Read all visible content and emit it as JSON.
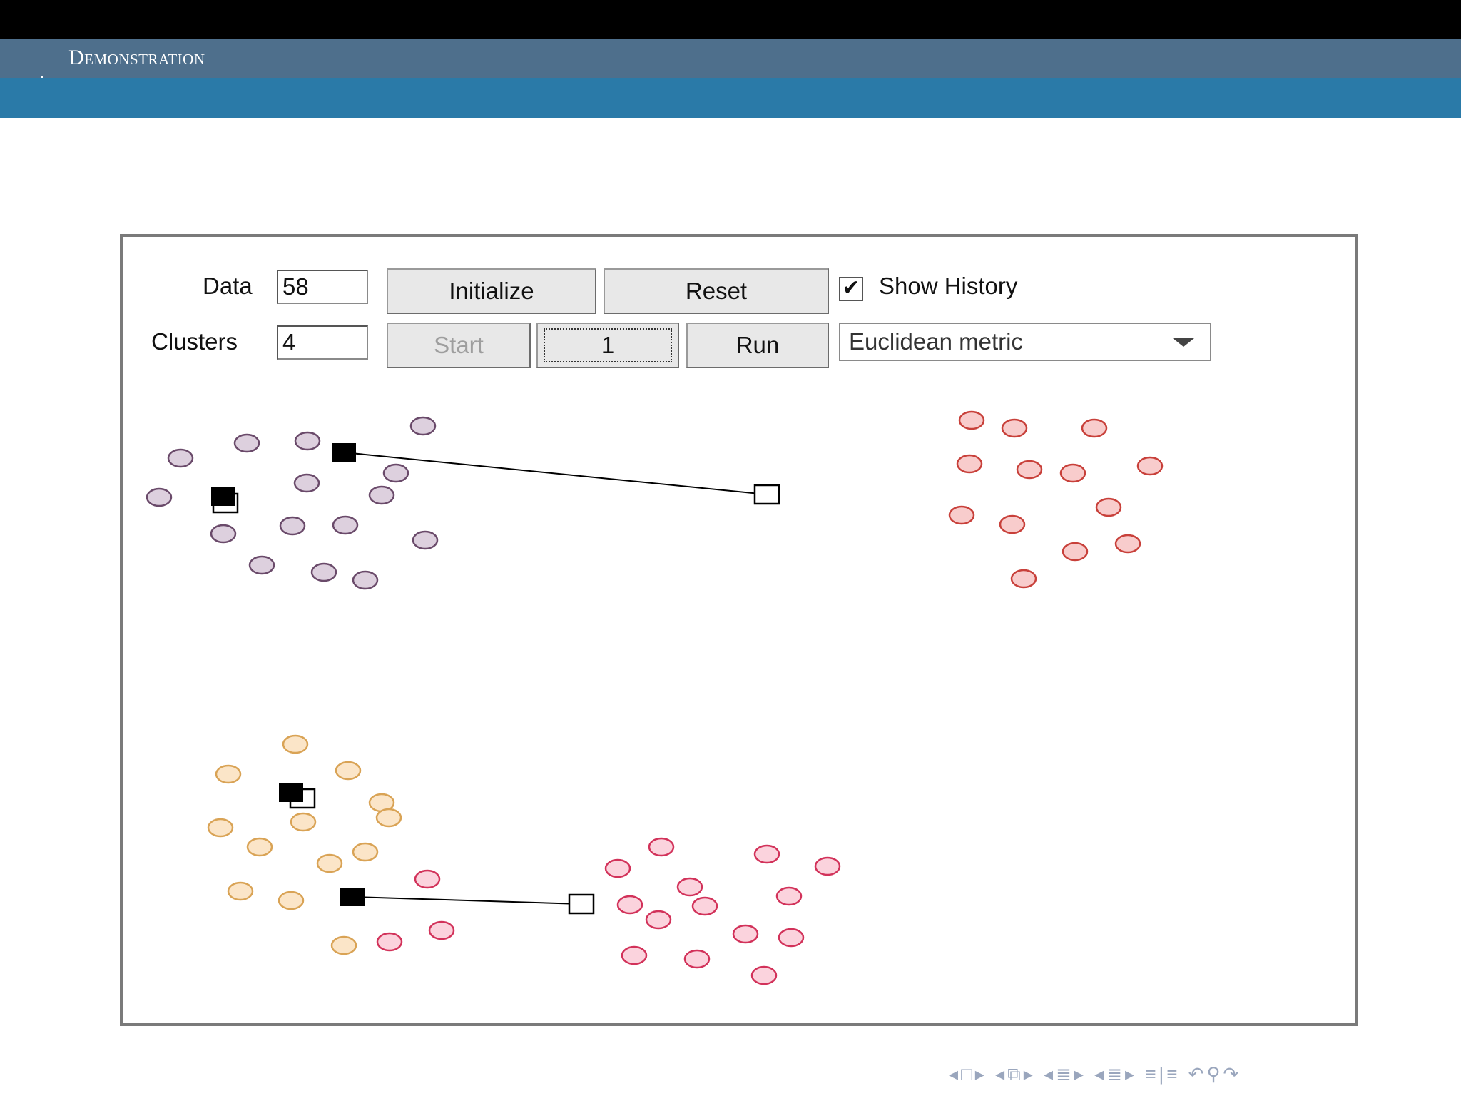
{
  "slide": {
    "section_title": "Demonstration"
  },
  "controls": {
    "data_label": "Data",
    "data_value": "58",
    "clusters_label": "Clusters",
    "clusters_value": "4",
    "initialize_label": "Initialize",
    "reset_label": "Reset",
    "start_label": "Start",
    "step_label": "1",
    "run_label": "Run",
    "show_history_label": "Show History",
    "show_history_checked": true,
    "metric_selected": "Euclidean metric"
  },
  "colors": {
    "purple": "#6a4a6a",
    "purple_fill": "#ddd0de",
    "red": "#c8403a",
    "red_fill": "#f8cccc",
    "orange": "#d9a355",
    "orange_fill": "#fbe5c8",
    "pink": "#d2325a",
    "pink_fill": "#fbd3dd",
    "centroid": "#000000"
  },
  "nav_icons": [
    "prev-frame-icon",
    "frame-icon",
    "next-frame-icon",
    "prev-subsection-icon",
    "subsection-icon",
    "next-subsection-icon",
    "prev-section-icon",
    "section-icon",
    "next-section-icon",
    "appendix-icon",
    "back-icon",
    "search-icon",
    "forward-icon"
  ]
}
